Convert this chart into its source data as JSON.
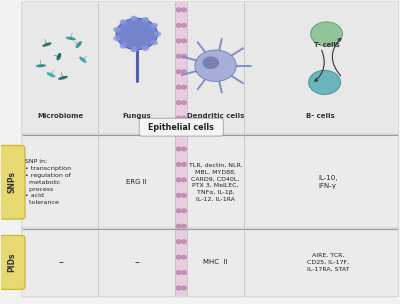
{
  "bg_color": "#f2f2f2",
  "top_section_bg": "#e8e8e8",
  "snp_section_bg": "#ebebeb",
  "pid_section_bg": "#ebebeb",
  "epithelial_strip_color": "#e8cce0",
  "epithelial_dot_color": "#c090b8",
  "label_pill_color": "#e8d870",
  "label_pill_border": "#c8b830",
  "col_labels": [
    "Microbiome",
    "Fungus",
    "Dendritic cells",
    "B- cells"
  ],
  "t_cell_label": "T- cells",
  "row_labels": [
    "SNPs",
    "PIDs"
  ],
  "snp_text": "SNP in:\n• transcription\n• regulation of\n  metabolic\n  process\n• acid\n  tolerance",
  "snp_col2": "ERG II",
  "snp_col3": "TLR, dectin, NLR,\nMBL, MYD88,\nCARD9, CD40L,\nPTX 3, MelLEC,\nTNFα, IL-1β,\nIL-12, IL-1RA",
  "snp_col4": "IL-10,\nIFN-γ",
  "pid_col1": "–",
  "pid_col2": "–",
  "pid_col3": "MHC  II",
  "pid_col4": "AIRE, TCR,\nCD25, IL-17F,\nIL-17RA, STAT",
  "epithelial_label": "Epithelial cells",
  "micro_colors": [
    "#1a6868",
    "#2a9090",
    "#1a6060",
    "#3aA0A0",
    "#2a8888",
    "#1a6060",
    "#3aA0A0",
    "#2a9090"
  ],
  "fungus_stalk_color": "#5060b0",
  "fungus_cap_color": "#6878c8",
  "fungus_spore_color": "#8898e0",
  "dc_body_color": "#a0a8d8",
  "dc_nucleus_color": "#7078b0",
  "dc_dendrite_color": "#8090c8",
  "t_cell_color": "#88c090",
  "t_cell_edge": "#609870",
  "b_cell_color": "#60b0b8",
  "b_cell_edge": "#409098"
}
